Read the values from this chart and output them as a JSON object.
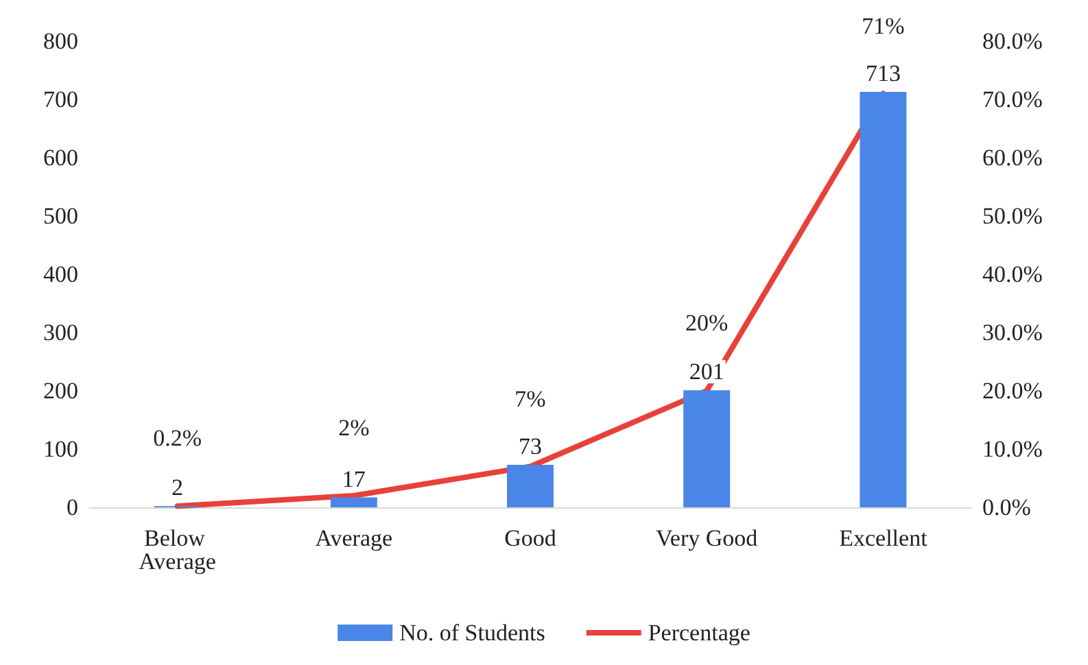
{
  "chart_data": {
    "type": "bar",
    "categories": [
      "Below Average",
      "Average",
      "Good",
      "Very Good",
      "Excellent"
    ],
    "series": [
      {
        "name": "No. of Students",
        "color": "#4a86e8",
        "values": [
          2,
          17,
          73,
          201,
          713
        ],
        "value_labels": [
          "2",
          "17",
          "73",
          "201",
          "713"
        ]
      },
      {
        "name": "Percentage",
        "type": "line",
        "axis": "y2",
        "color": "#e8413a",
        "values": [
          0.2,
          2,
          7,
          20,
          71
        ],
        "value_labels": [
          "0.2%",
          "2%",
          "7%",
          "20%",
          "71%"
        ]
      }
    ],
    "ylim": [
      0,
      800
    ],
    "yticks": [
      0,
      100,
      200,
      300,
      400,
      500,
      600,
      700,
      800
    ],
    "y2lim": [
      0,
      80
    ],
    "y2ticks": [
      {
        "value": 0,
        "label": "0.0%"
      },
      {
        "value": 10,
        "label": "10.0%"
      },
      {
        "value": 20,
        "label": "20.0%"
      },
      {
        "value": 30,
        "label": "30.0%"
      },
      {
        "value": 40,
        "label": "40.0%"
      },
      {
        "value": 50,
        "label": "50.0%"
      },
      {
        "value": 60,
        "label": "60.0%"
      },
      {
        "value": 70,
        "label": "70.0%"
      },
      {
        "value": 80,
        "label": "80.0%"
      }
    ],
    "grid": false,
    "legend": "bottom",
    "marker": "none"
  }
}
